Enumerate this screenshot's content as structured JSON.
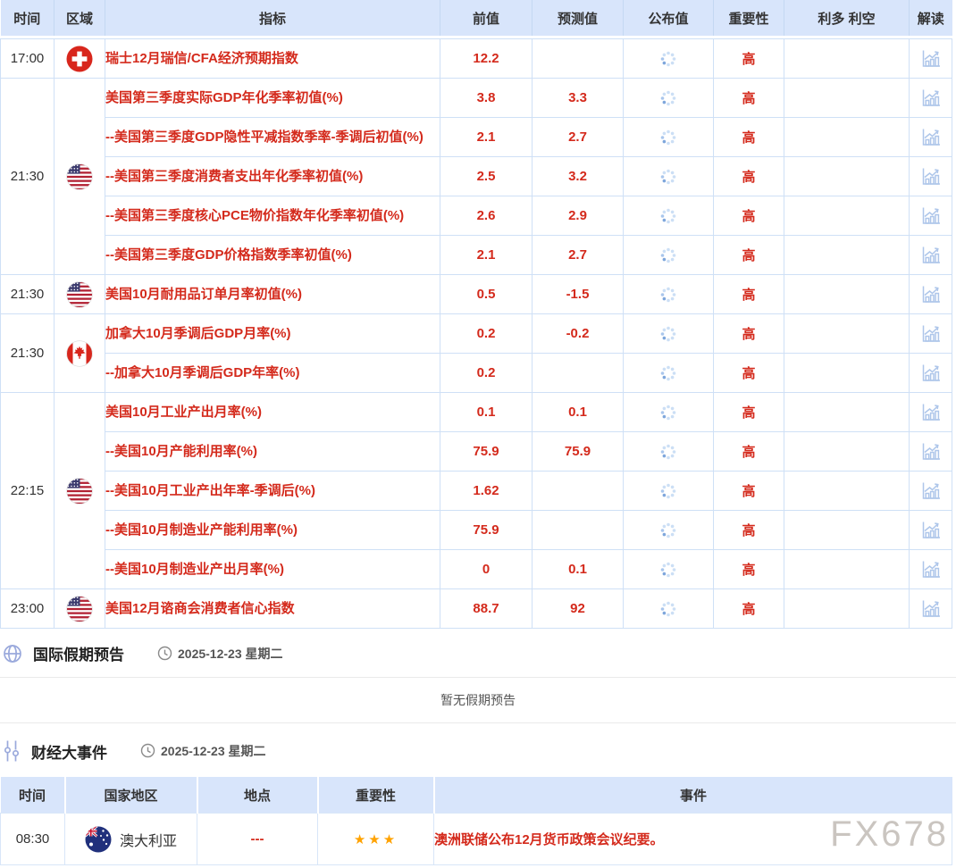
{
  "calendar_table": {
    "headers": [
      "时间",
      "区域",
      "指标",
      "前值",
      "预测值",
      "公布值",
      "重要性",
      "利多 利空",
      "解读"
    ],
    "importance_high_label": "高",
    "groups": [
      {
        "time": "17:00",
        "country": "switzerland",
        "rows": [
          {
            "indicator": "瑞士12月瑞信/CFA经济预期指数",
            "previous": "12.2",
            "forecast": "",
            "importance": "高"
          }
        ]
      },
      {
        "time": "21:30",
        "country": "usa",
        "rows": [
          {
            "indicator": "美国第三季度实际GDP年化季率初值(%)",
            "previous": "3.8",
            "forecast": "3.3",
            "importance": "高"
          },
          {
            "indicator": "--美国第三季度GDP隐性平减指数季率-季调后初值(%)",
            "previous": "2.1",
            "forecast": "2.7",
            "importance": "高"
          },
          {
            "indicator": "--美国第三季度消费者支出年化季率初值(%)",
            "previous": "2.5",
            "forecast": "3.2",
            "importance": "高"
          },
          {
            "indicator": "--美国第三季度核心PCE物价指数年化季率初值(%)",
            "previous": "2.6",
            "forecast": "2.9",
            "importance": "高"
          },
          {
            "indicator": "--美国第三季度GDP价格指数季率初值(%)",
            "previous": "2.1",
            "forecast": "2.7",
            "importance": "高"
          }
        ]
      },
      {
        "time": "21:30",
        "country": "usa",
        "rows": [
          {
            "indicator": "美国10月耐用品订单月率初值(%)",
            "previous": "0.5",
            "forecast": "-1.5",
            "importance": "高"
          }
        ]
      },
      {
        "time": "21:30",
        "country": "canada",
        "rows": [
          {
            "indicator": "加拿大10月季调后GDP月率(%)",
            "previous": "0.2",
            "forecast": "-0.2",
            "importance": "高"
          },
          {
            "indicator": "--加拿大10月季调后GDP年率(%)",
            "previous": "0.2",
            "forecast": "",
            "importance": "高"
          }
        ]
      },
      {
        "time": "22:15",
        "country": "usa",
        "rows": [
          {
            "indicator": "美国10月工业产出月率(%)",
            "previous": "0.1",
            "forecast": "0.1",
            "importance": "高"
          },
          {
            "indicator": "--美国10月产能利用率(%)",
            "previous": "75.9",
            "forecast": "75.9",
            "importance": "高"
          },
          {
            "indicator": "--美国10月工业产出年率-季调后(%)",
            "previous": "1.62",
            "forecast": "",
            "importance": "高"
          },
          {
            "indicator": "--美国10月制造业产能利用率(%)",
            "previous": "75.9",
            "forecast": "",
            "importance": "高"
          },
          {
            "indicator": "--美国10月制造业产出月率(%)",
            "previous": "0",
            "forecast": "0.1",
            "importance": "高"
          }
        ]
      },
      {
        "time": "23:00",
        "country": "usa",
        "rows": [
          {
            "indicator": "美国12月谘商会消费者信心指数",
            "previous": "88.7",
            "forecast": "92",
            "importance": "高"
          }
        ]
      }
    ]
  },
  "holiday_section": {
    "title": "国际假期预告",
    "date": "2025-12-23 星期二",
    "empty_text": "暂无假期预告"
  },
  "events_section": {
    "title": "财经大事件",
    "date": "2025-12-23 星期二",
    "table": {
      "headers": [
        "时间",
        "国家地区",
        "地点",
        "重要性",
        "事件"
      ],
      "rows": [
        {
          "time": "08:30",
          "country_flag": "australia",
          "country": "澳大利亚",
          "location": "---",
          "importance_stars": 3,
          "star_glyph": "★",
          "event": "澳洲联储公布12月货币政策会议纪要。"
        }
      ]
    }
  },
  "watermark": "FX678",
  "icons": {
    "published_pending": "loading-spinner-icon",
    "interpretation": "chart-icon",
    "holiday_section": "globe-icon",
    "events_section": "sliders-icon",
    "date": "clock-icon",
    "flags": [
      "switzerland-flag-icon",
      "usa-flag-icon",
      "canada-flag-icon",
      "australia-flag-icon"
    ]
  },
  "colors": {
    "accent_red": "#d42a1c",
    "header_bg": "#d8e5fb",
    "border_blue": "#cfe0f6",
    "star_orange": "#ffa200",
    "icon_blue": "#9aa9dc",
    "watermark_gray": "#9e968c"
  }
}
